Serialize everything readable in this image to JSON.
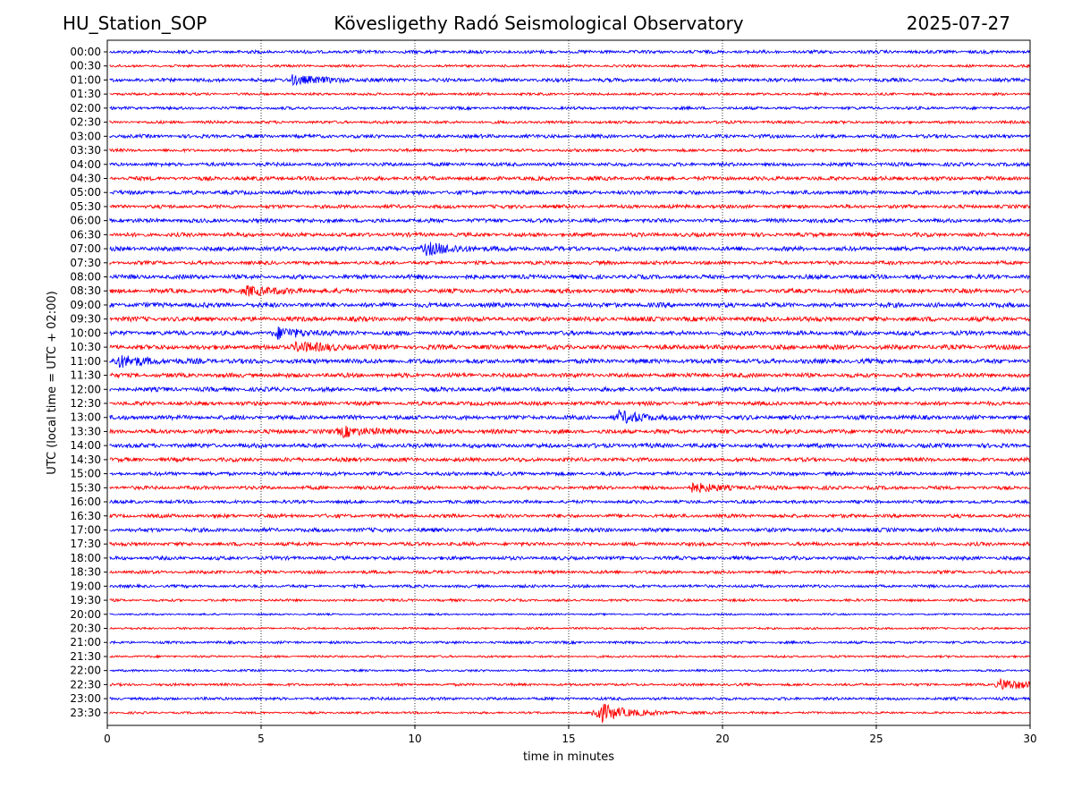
{
  "header": {
    "station": "HU_Station_SOP",
    "observatory": "Kövesligethy Radó Seismological Observatory",
    "date": "2025-07-27"
  },
  "chart_data": {
    "type": "line",
    "title": "Kövesligethy Radó Seismological Observatory",
    "xlabel": "time in minutes",
    "ylabel": "UTC (local time = UTC + 02:00)",
    "xlim": [
      0,
      30
    ],
    "xticks": [
      "0",
      "5",
      "10",
      "15",
      "20",
      "25",
      "30"
    ],
    "grid": "vertical dotted",
    "colors": [
      "#0000ff",
      "#ff0000"
    ],
    "rows": [
      "00:00",
      "00:30",
      "01:00",
      "01:30",
      "02:00",
      "02:30",
      "03:00",
      "03:30",
      "04:00",
      "04:30",
      "05:00",
      "05:30",
      "06:00",
      "06:30",
      "07:00",
      "07:30",
      "08:00",
      "08:30",
      "09:00",
      "09:30",
      "10:00",
      "10:30",
      "11:00",
      "11:30",
      "12:00",
      "12:30",
      "13:00",
      "13:30",
      "14:00",
      "14:30",
      "15:00",
      "15:30",
      "16:00",
      "16:30",
      "17:00",
      "17:30",
      "18:00",
      "18:30",
      "19:00",
      "19:30",
      "20:00",
      "20:30",
      "21:00",
      "21:30",
      "22:00",
      "22:30",
      "23:00",
      "23:30"
    ],
    "noise_level": [
      0.45,
      0.35,
      0.5,
      0.35,
      0.4,
      0.4,
      0.5,
      0.4,
      0.5,
      0.55,
      0.55,
      0.5,
      0.55,
      0.55,
      0.6,
      0.5,
      0.6,
      0.6,
      0.65,
      0.65,
      0.6,
      0.65,
      0.65,
      0.6,
      0.6,
      0.55,
      0.6,
      0.6,
      0.6,
      0.55,
      0.5,
      0.5,
      0.45,
      0.5,
      0.55,
      0.5,
      0.5,
      0.45,
      0.4,
      0.35,
      0.25,
      0.3,
      0.35,
      0.3,
      0.3,
      0.35,
      0.4,
      0.3
    ],
    "events": [
      {
        "row": "01:00",
        "minute": 6.0,
        "amplitude": 1.2
      },
      {
        "row": "07:00",
        "minute": 10.3,
        "amplitude": 1.6
      },
      {
        "row": "08:30",
        "minute": 4.5,
        "amplitude": 1.2
      },
      {
        "row": "10:00",
        "minute": 5.5,
        "amplitude": 1.3
      },
      {
        "row": "10:30",
        "minute": 6.1,
        "amplitude": 1.3
      },
      {
        "row": "11:00",
        "minute": 0.3,
        "amplitude": 1.4
      },
      {
        "row": "13:00",
        "minute": 16.6,
        "amplitude": 1.4
      },
      {
        "row": "13:30",
        "minute": 7.6,
        "amplitude": 1.3
      },
      {
        "row": "15:30",
        "minute": 18.9,
        "amplitude": 1.2
      },
      {
        "row": "22:30",
        "minute": 29.0,
        "amplitude": 1.5
      },
      {
        "row": "23:30",
        "minute": 15.9,
        "amplitude": 2.6
      }
    ]
  }
}
